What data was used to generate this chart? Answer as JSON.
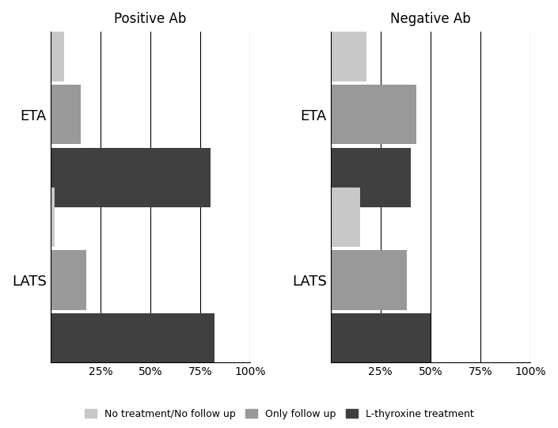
{
  "categories": [
    "ETA",
    "LATS"
  ],
  "pos_ab": {
    "no_treatment": [
      7,
      2
    ],
    "only_follow_up": [
      15,
      18
    ],
    "l_thyroxine": [
      80,
      82
    ]
  },
  "neg_ab": {
    "no_treatment": [
      18,
      15
    ],
    "only_follow_up": [
      43,
      38
    ],
    "l_thyroxine": [
      40,
      50
    ]
  },
  "colors": {
    "no_treatment": "#c8c8c8",
    "only_follow_up": "#999999",
    "l_thyroxine": "#404040"
  },
  "titles": [
    "Positive Ab",
    "Negative Ab"
  ],
  "xlim": [
    0,
    100
  ],
  "xticks": [
    0,
    25,
    50,
    75,
    100
  ],
  "xticklabels": [
    "",
    "25%",
    "50%",
    "75%",
    "100%"
  ],
  "legend_labels": [
    "No treatment/No follow up",
    "Only follow up",
    "L-thyroxine treatment"
  ],
  "bar_height": 0.18,
  "background_color": "#ffffff",
  "group_centers": [
    0.75,
    0.25
  ],
  "ylim": [
    0,
    1.0
  ]
}
